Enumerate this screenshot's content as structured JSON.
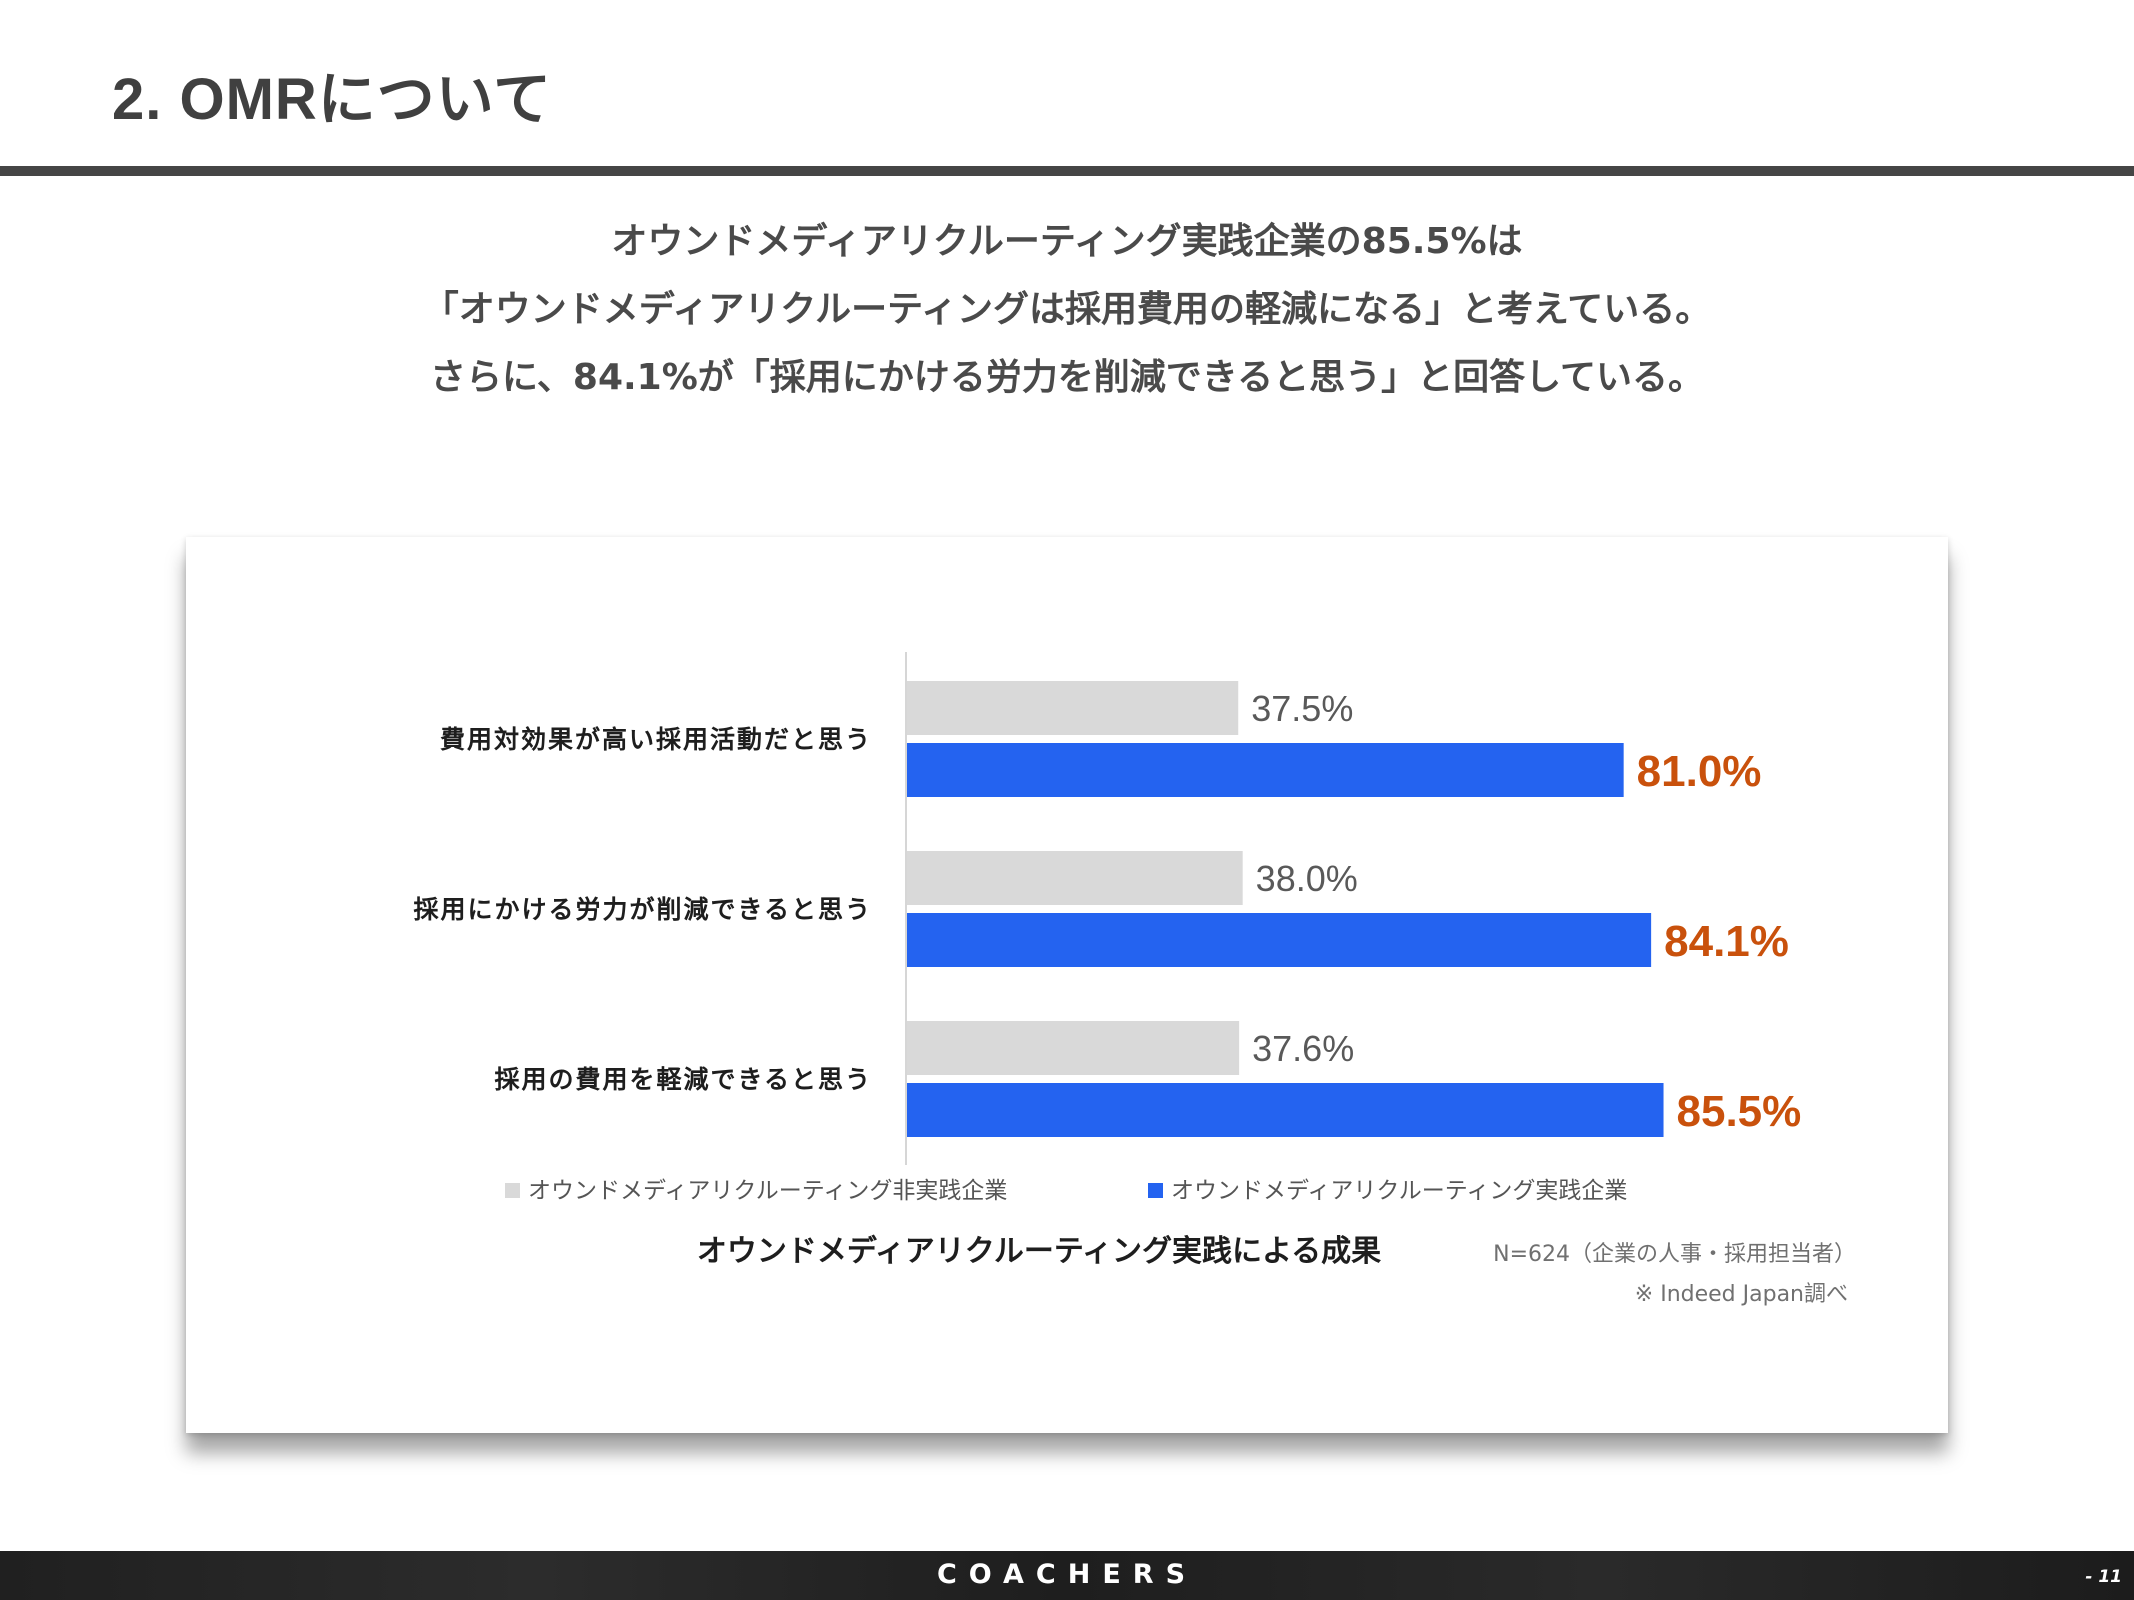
{
  "slide": {
    "title": "2. OMRについて",
    "headline": [
      "オウンドメディアリクルーティング実践企業の85.5%は",
      "「オウンドメディアリクルーティングは採用費用の軽減になる」と考えている。",
      "さらに、84.1%が「採用にかける労力を削減できると思う」と回答している。"
    ]
  },
  "chart_data": {
    "type": "bar",
    "orientation": "horizontal",
    "title": "オウンドメディアリクルーティング実践による成果",
    "categories": [
      "費用対効果が高い採用活動だと思う",
      "採用にかける労力が削減できると思う",
      "採用の費用を軽減できると思う"
    ],
    "series": [
      {
        "name": "オウンドメディアリクルーティング非実践企業",
        "values": [
          37.5,
          38.0,
          37.6
        ],
        "labels": [
          "37.5%",
          "38.0%",
          "37.6%"
        ],
        "color": "#d9d9d9",
        "label_color": "#595959"
      },
      {
        "name": "オウンドメディアリクルーティング実践企業",
        "values": [
          81.0,
          84.1,
          85.5
        ],
        "labels": [
          "81.0%",
          "84.1%",
          "85.5%"
        ],
        "color": "#2463f0",
        "label_color": "#c9510c"
      }
    ],
    "xlim": [
      0,
      100
    ],
    "legend_position": "bottom",
    "note": "N=624（企業の人事・採用担当者）",
    "source": "※ Indeed Japan調べ"
  },
  "footer": {
    "brand": "COACHERS",
    "page": "- 11"
  }
}
